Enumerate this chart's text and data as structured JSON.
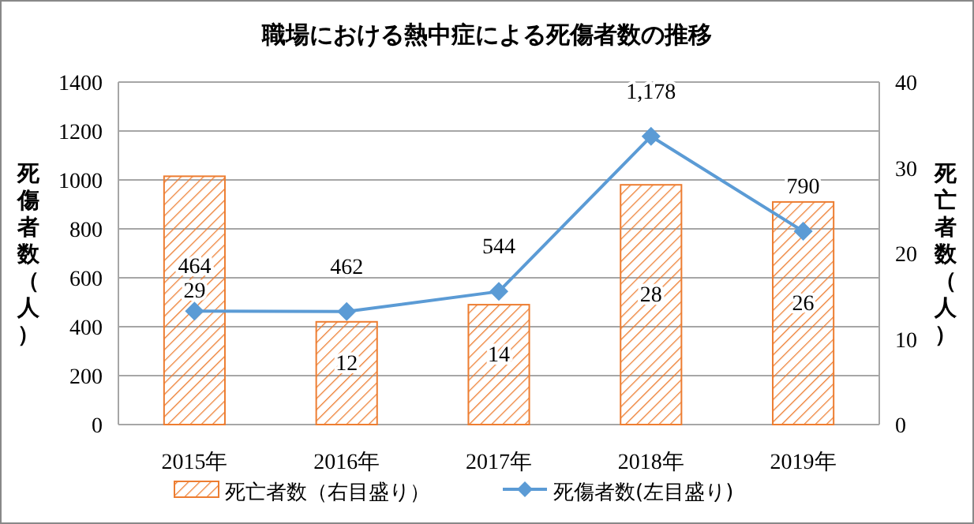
{
  "chart_data": {
    "type": "bar",
    "title": "職場における熱中症による死傷者数の推移",
    "categories": [
      "2015年",
      "2016年",
      "2017年",
      "2018年",
      "2019年"
    ],
    "series": [
      {
        "name": "死亡者数（右目盛り）",
        "axis": "y2",
        "color": "#ed7d31",
        "values": [
          29,
          12,
          14,
          28,
          26
        ],
        "value_labels": [
          "29",
          "12",
          "14",
          "28",
          "26"
        ]
      },
      {
        "name": "死傷者数(左目盛り)",
        "type": "line",
        "color": "#5b9bd5",
        "marker": "diamond",
        "values": [
          464,
          462,
          544,
          1178,
          790
        ],
        "value_labels": [
          "464",
          "462",
          "544",
          "1,178",
          "790"
        ]
      }
    ],
    "ylabel": "死傷者数（人）",
    "y2label": "死亡者数（人）",
    "ylim": [
      0,
      1400
    ],
    "yticks": [
      0,
      200,
      400,
      600,
      800,
      1000,
      1200,
      1400
    ],
    "y2lim": [
      0,
      40
    ],
    "y2ticks": [
      0,
      10,
      20,
      30,
      40
    ],
    "grid": "y",
    "legend": "bottom"
  }
}
